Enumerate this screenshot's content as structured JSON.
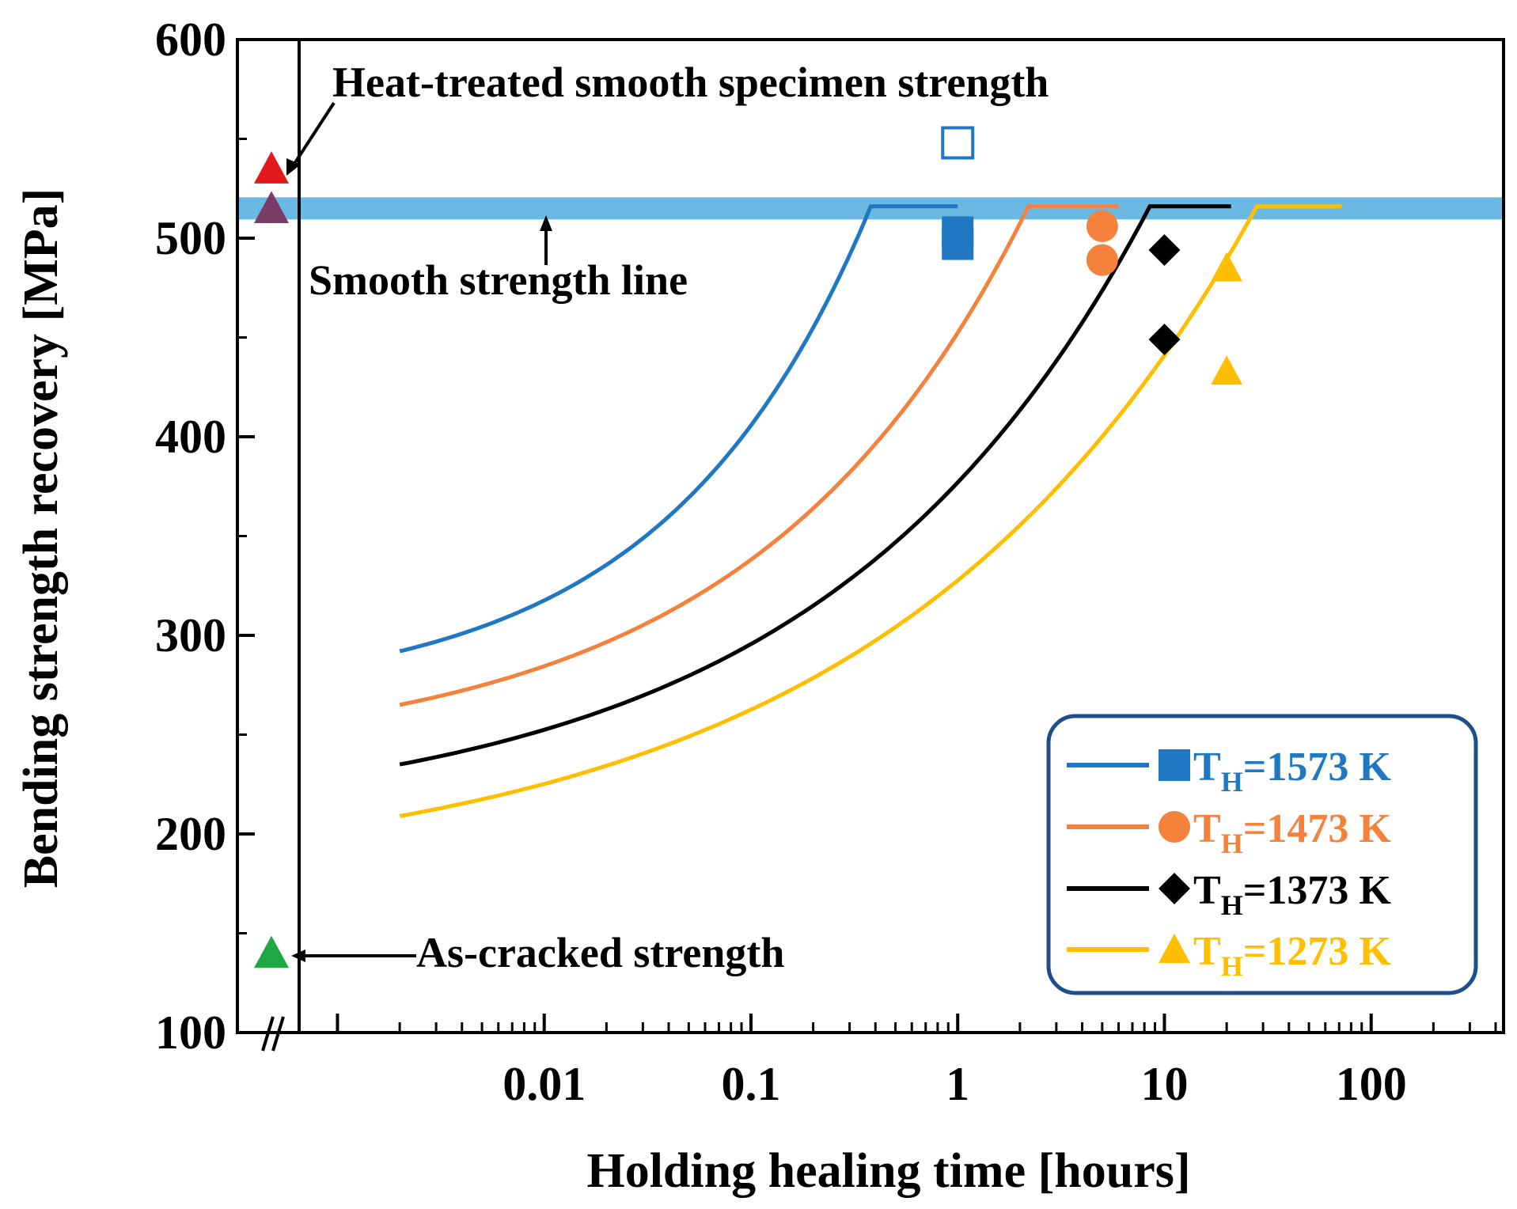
{
  "chart_data": {
    "type": "line",
    "title": "",
    "xlabel": "Holding healing time [hours]",
    "ylabel": "Bending strength recovery [MPa]",
    "xscale": "log",
    "xlim": [
      0.0007,
      400
    ],
    "ylim": [
      100,
      600
    ],
    "x_ticks": [
      {
        "value": 0.01,
        "label": "0.01"
      },
      {
        "value": 0.1,
        "label": "0.1"
      },
      {
        "value": 1,
        "label": "1"
      },
      {
        "value": 10,
        "label": "10"
      },
      {
        "value": 100,
        "label": "100"
      }
    ],
    "y_ticks": [
      {
        "value": 100,
        "label": "100"
      },
      {
        "value": 200,
        "label": "200"
      },
      {
        "value": 300,
        "label": "300"
      },
      {
        "value": 400,
        "label": "400"
      },
      {
        "value": 500,
        "label": "500"
      },
      {
        "value": 600,
        "label": "600"
      }
    ],
    "smooth_strength_line": {
      "label": "Smooth strength line",
      "value": 515,
      "color": "#5BB1E0"
    },
    "annotations": {
      "heat_treated": "Heat-treated smooth specimen strength",
      "as_cracked": "As-cracked strength"
    },
    "reference_points": [
      {
        "name": "heat-treated-a",
        "value": 535,
        "color": "#E31A1C",
        "marker": "triangle"
      },
      {
        "name": "heat-treated-b",
        "value": 515,
        "color": "#7A3B66",
        "marker": "triangle"
      },
      {
        "name": "as-cracked",
        "value": 140,
        "color": "#1FA843",
        "marker": "triangle"
      }
    ],
    "series": [
      {
        "name": "1573 K",
        "label_prefix": "T",
        "label_sub": "H",
        "label_rest": "=1573 K",
        "color": "#1F78C1",
        "marker": "square",
        "curve": {
          "x_start": 0.002,
          "x_cap": 0.38,
          "x_end": 1.0,
          "y_start": 292,
          "y_cap": 516
        },
        "points": [
          {
            "x": 1,
            "y": 503
          },
          {
            "x": 1,
            "y": 497
          }
        ],
        "open_points": [
          {
            "x": 1,
            "y": 548
          }
        ]
      },
      {
        "name": "1473 K",
        "label_prefix": "T",
        "label_sub": "H",
        "label_rest": "=1473 K",
        "color": "#F5823C",
        "marker": "circle",
        "curve": {
          "x_start": 0.002,
          "x_cap": 2.2,
          "x_end": 6.0,
          "y_start": 265,
          "y_cap": 516
        },
        "points": [
          {
            "x": 5,
            "y": 506
          },
          {
            "x": 5,
            "y": 489
          }
        ],
        "open_points": []
      },
      {
        "name": "1373 K",
        "label_prefix": "T",
        "label_sub": "H",
        "label_rest": "=1373 K",
        "color": "#000000",
        "marker": "diamond",
        "curve": {
          "x_start": 0.002,
          "x_cap": 8.5,
          "x_end": 21.0,
          "y_start": 235,
          "y_cap": 516
        },
        "points": [
          {
            "x": 10,
            "y": 494
          },
          {
            "x": 10,
            "y": 449
          }
        ],
        "open_points": []
      },
      {
        "name": "1273 K",
        "label_prefix": "T",
        "label_sub": "H",
        "label_rest": "=1273 K",
        "color": "#FFBF00",
        "marker": "triangle",
        "curve": {
          "x_start": 0.002,
          "x_cap": 28.0,
          "x_end": 72.0,
          "y_start": 209,
          "y_cap": 516
        },
        "points": [
          {
            "x": 20,
            "y": 485
          },
          {
            "x": 20,
            "y": 433
          }
        ],
        "open_points": []
      }
    ],
    "legend_position": "bottom-right",
    "legend_border_color": "#1F4E8C"
  }
}
